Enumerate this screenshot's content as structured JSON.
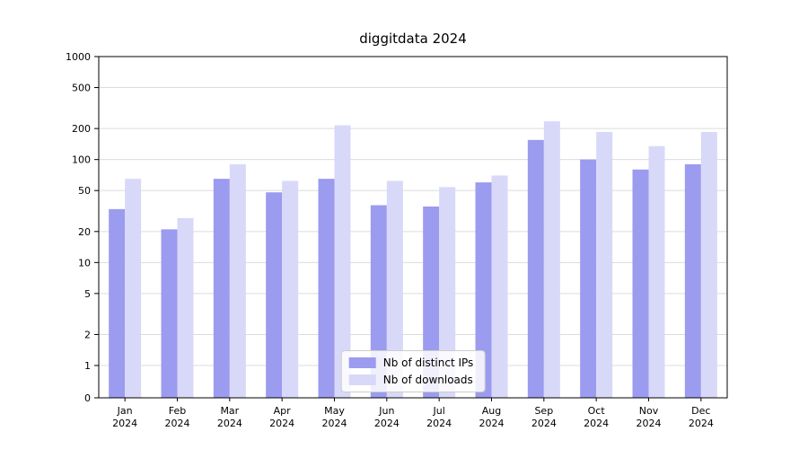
{
  "chart_data": {
    "type": "bar",
    "title": "diggitdata 2024",
    "yscale": "symlog",
    "ylim": [
      0,
      1000
    ],
    "yticks": [
      0,
      1,
      2,
      5,
      10,
      20,
      50,
      100,
      200,
      500,
      1000
    ],
    "grid": true,
    "legend_position": "lower center",
    "year_label": "2024",
    "months": [
      "Jan",
      "Feb",
      "Mar",
      "Apr",
      "May",
      "Jun",
      "Jul",
      "Aug",
      "Sep",
      "Oct",
      "Nov",
      "Dec"
    ],
    "series": [
      {
        "name": "Nb of distinct IPs",
        "color": "#9b9bef",
        "values": [
          33,
          21,
          65,
          48,
          65,
          36,
          35,
          60,
          155,
          100,
          80,
          90
        ]
      },
      {
        "name": "Nb of downloads",
        "color": "#d8d8f8",
        "values": [
          65,
          27,
          90,
          62,
          215,
          62,
          54,
          70,
          235,
          185,
          135,
          185
        ]
      }
    ]
  }
}
